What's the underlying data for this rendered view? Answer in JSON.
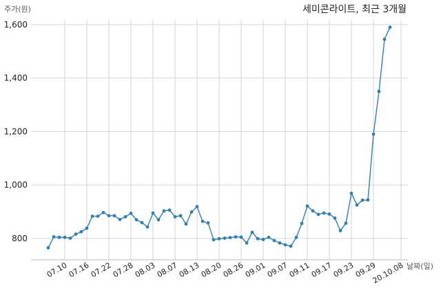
{
  "chart_data": {
    "type": "line",
    "title": "세미콘라이트, 최근 3개월",
    "ylabel": "주가(원)",
    "xlabel": "날짜(일)",
    "ylim": [
      720,
      1620
    ],
    "yticks": [
      800,
      1000,
      1200,
      1400,
      1600
    ],
    "ytick_labels": [
      "800",
      "1,000",
      "1,200",
      "1,400",
      "1,600"
    ],
    "grid": true,
    "legend": "none",
    "colors": {
      "line": "#2e7fb4",
      "grid": "#d6d6d6",
      "axis": "#bbbbbb"
    },
    "xtick_labels": [
      "07.10",
      "07.16",
      "07.22",
      "07.28",
      "08.03",
      "08.07",
      "08.13",
      "08.20",
      "08.26",
      "09.01",
      "09.07",
      "09.11",
      "09.17",
      "09.23",
      "09.29",
      "20.10.08"
    ],
    "xtick_indices": [
      3,
      7,
      11,
      15,
      19,
      23,
      27,
      31,
      35,
      39,
      43,
      47,
      51,
      55,
      59,
      64
    ],
    "series": [
      {
        "values": [
          765,
          806,
          804,
          804,
          801,
          816,
          825,
          838,
          883,
          883,
          897,
          885,
          885,
          871,
          881,
          894,
          870,
          859,
          843,
          895,
          870,
          903,
          906,
          881,
          885,
          854,
          899,
          919,
          864,
          858,
          795,
          799,
          801,
          803,
          806,
          805,
          783,
          823,
          799,
          796,
          804,
          792,
          783,
          776,
          771,
          804,
          856,
          921,
          903,
          890,
          895,
          891,
          876,
          829,
          857,
          969,
          925,
          943,
          944,
          1190,
          1350,
          1545,
          1590
        ]
      }
    ]
  }
}
